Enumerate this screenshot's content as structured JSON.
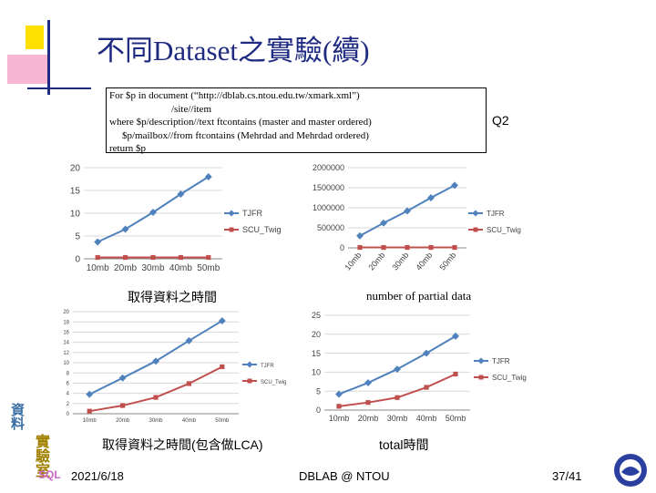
{
  "slide": {
    "title": "不同Dataset之實驗(續)",
    "query_lines": [
      "For $p in document (“http://dblab.cs.ntou.edu.tw/xmark.xml”)",
      "/site//item",
      "where $p/description//text ftcontains (master and master ordered)",
      "$p/mailbox//from ftcontains (Mehrdad and Mehrdad ordered)",
      "return $p"
    ],
    "query_id": "Q2",
    "captions": {
      "top_left": "取得資料之時間",
      "top_right": "number of partial data",
      "bottom_left": "取得資料之時間(包含做LCA)",
      "bottom_right": "total時間"
    },
    "footer": {
      "date": "2021/6/18",
      "center": "DBLAB @ NTOU",
      "page": "37/41"
    },
    "logo_text": [
      "資料",
      "實驗室",
      "SQL"
    ]
  },
  "colors": {
    "tjfr": "#4f81bd",
    "twig": "#c0504d",
    "title": "#1f2b80"
  },
  "chart_data": [
    {
      "type": "line",
      "categories": [
        "10mb",
        "20mb",
        "30mb",
        "40mb",
        "50mb"
      ],
      "ylim": [
        0,
        20
      ],
      "yticks": [
        "0",
        "5",
        "10",
        "15",
        "20"
      ],
      "series": [
        {
          "name": "TJFR",
          "values": [
            3.7,
            6.5,
            10.2,
            14.2,
            18
          ]
        },
        {
          "name": "SCU_Twig",
          "values": [
            0.3,
            0.3,
            0.3,
            0.3,
            0.3
          ]
        }
      ]
    },
    {
      "type": "line",
      "categories": [
        "10mb",
        "20mb",
        "30mb",
        "40mb",
        "50mb"
      ],
      "ylim": [
        0,
        2000000
      ],
      "yticks": [
        "0",
        "500000",
        "1000000",
        "1500000",
        "2000000"
      ],
      "series": [
        {
          "name": "TJFR",
          "values": [
            300000,
            620000,
            920000,
            1250000,
            1560000
          ]
        },
        {
          "name": "SCU_Twig",
          "values": [
            10000,
            10000,
            10000,
            10000,
            10000
          ]
        }
      ]
    },
    {
      "type": "line",
      "categories": [
        "10mb",
        "20mb",
        "30mb",
        "40mb",
        "50mb"
      ],
      "ylim": [
        0,
        20
      ],
      "yticks": [
        "0",
        "2",
        "4",
        "6",
        "8",
        "10",
        "12",
        "14",
        "16",
        "18",
        "20"
      ],
      "series": [
        {
          "name": "TJFR",
          "values": [
            3.8,
            7,
            10.3,
            14.3,
            18.2
          ]
        },
        {
          "name": "SCU_Twig",
          "values": [
            0.5,
            1.6,
            3.2,
            5.9,
            9.2
          ]
        }
      ]
    },
    {
      "type": "line",
      "categories": [
        "10mb",
        "20mb",
        "30mb",
        "40mb",
        "50mb"
      ],
      "ylim": [
        0,
        25
      ],
      "yticks": [
        "0",
        "5",
        "10",
        "15",
        "20",
        "25"
      ],
      "series": [
        {
          "name": "TJFR",
          "values": [
            4.2,
            7.2,
            10.8,
            15,
            19.5
          ]
        },
        {
          "name": "SCU_Twig",
          "values": [
            1,
            2,
            3.3,
            6,
            9.5
          ]
        }
      ]
    }
  ]
}
